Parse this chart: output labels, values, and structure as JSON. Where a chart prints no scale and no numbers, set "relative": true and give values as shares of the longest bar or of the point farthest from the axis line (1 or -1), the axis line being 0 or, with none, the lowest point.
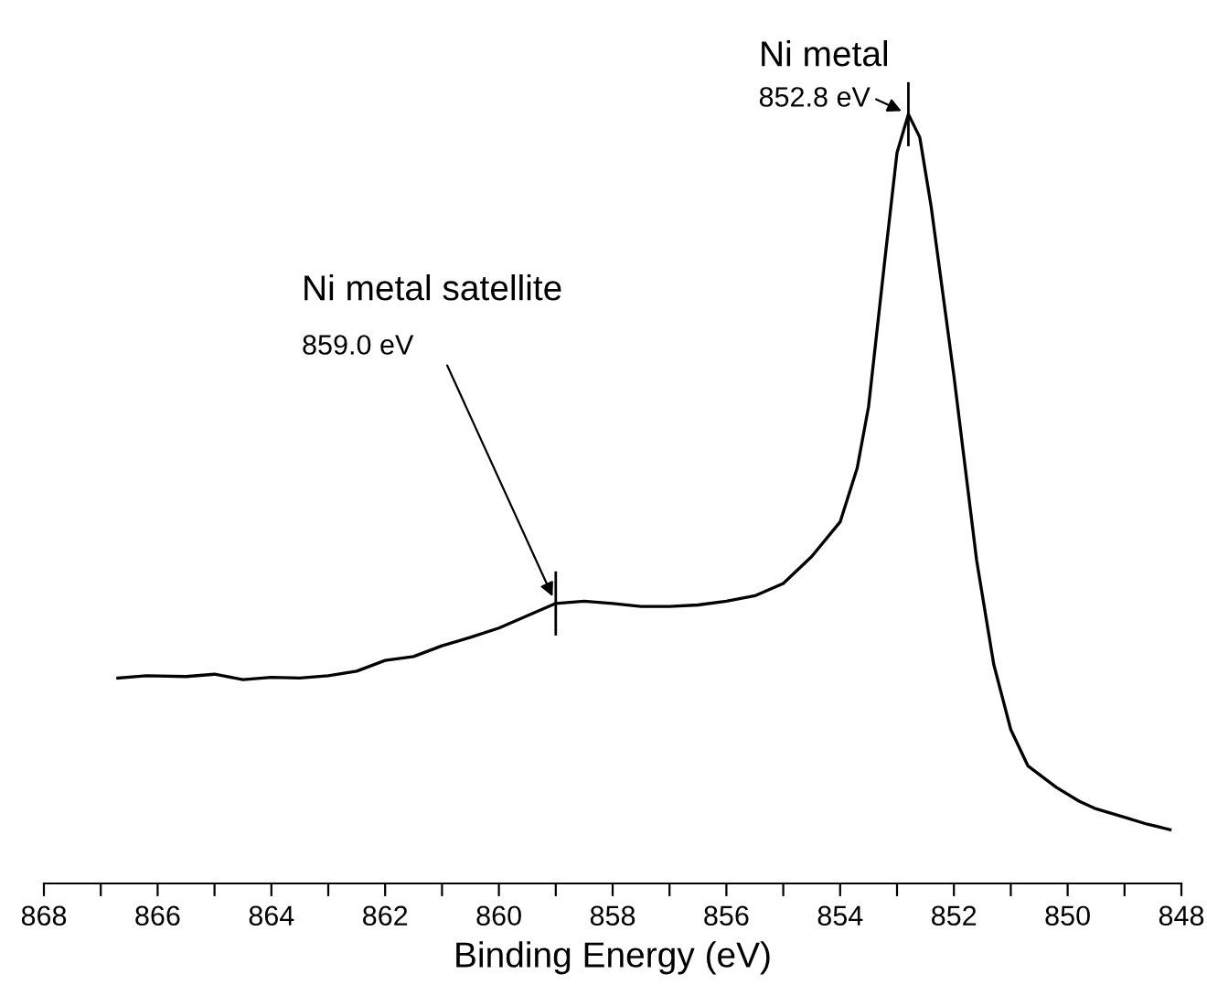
{
  "chart_data": {
    "type": "line",
    "relative": true,
    "xlabel": "Binding Energy (eV)",
    "xlim": [
      868,
      848
    ],
    "xticks": [
      868,
      {
        "value": 867,
        "label": null
      },
      866,
      {
        "value": 865,
        "label": null
      },
      864,
      {
        "value": 863,
        "label": null
      },
      862,
      {
        "value": 861,
        "label": null
      },
      860,
      {
        "value": 859,
        "label": null
      },
      858,
      {
        "value": 857,
        "label": null
      },
      856,
      {
        "value": 855,
        "label": null
      },
      854,
      {
        "value": 853,
        "label": null
      },
      852,
      {
        "value": 851,
        "label": null
      },
      850,
      {
        "value": 849,
        "label": null
      },
      848
    ],
    "tick_labels": "x",
    "grid": false,
    "legend": false,
    "marker": "none",
    "line_style": "solid",
    "series": [
      {
        "color": "#000000",
        "x": [
          866.7,
          866.2,
          865.5,
          865.0,
          864.5,
          864.0,
          863.5,
          863.0,
          862.5,
          862.0,
          861.5,
          861.0,
          860.5,
          860.0,
          859.5,
          859.0,
          858.5,
          858.0,
          857.5,
          857.0,
          856.5,
          856.0,
          855.5,
          855.0,
          854.5,
          854.0,
          853.7,
          853.5,
          853.2,
          853.0,
          852.8,
          852.6,
          852.4,
          852.0,
          851.6,
          851.3,
          851.0,
          850.7,
          850.2,
          849.8,
          849.5,
          849.0,
          848.6,
          848.2
        ],
        "values": [
          0.267,
          0.27,
          0.269,
          0.272,
          0.265,
          0.268,
          0.267,
          0.27,
          0.276,
          0.29,
          0.295,
          0.309,
          0.32,
          0.332,
          0.348,
          0.364,
          0.367,
          0.364,
          0.36,
          0.36,
          0.362,
          0.367,
          0.374,
          0.39,
          0.425,
          0.47,
          0.54,
          0.62,
          0.82,
          0.95,
          1.0,
          0.97,
          0.88,
          0.66,
          0.42,
          0.285,
          0.2,
          0.153,
          0.125,
          0.107,
          0.097,
          0.086,
          0.077,
          0.07
        ]
      }
    ],
    "annotations": [
      "Ni metal",
      {
        "text": "852.8 eV",
        "x": 852.8,
        "y": 1.0
      },
      "Ni metal satellite",
      {
        "text": "859.0 eV",
        "x": 859.0,
        "y": 0.364
      }
    ]
  }
}
